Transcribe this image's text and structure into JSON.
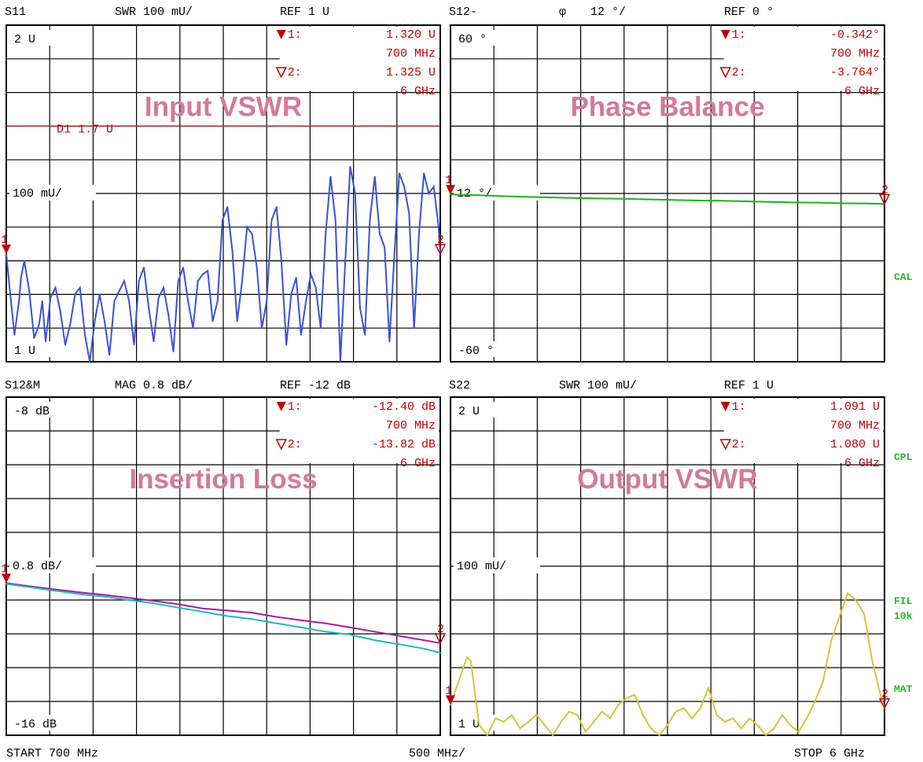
{
  "instrument": {
    "start_label": "START  700 MHz",
    "div_label": "500 MHz/",
    "stop_label": "STOP 6 GHz",
    "side_labels": [
      "CAL",
      "CPL",
      "FIL",
      "10k",
      "MAT"
    ],
    "colors": {
      "grid": "#000000",
      "marker": "#c00000",
      "title": "#d37a95",
      "side": "#22bb22"
    }
  },
  "chart_data": [
    {
      "type": "line",
      "channel": "S11",
      "header": {
        "param": "S11",
        "scale": "SWR 100 mU/",
        "ref": "REF 1 U"
      },
      "title": "Input VSWR",
      "ref_label": "100 mU/",
      "top_label": "2 U",
      "bottom_label": "1 U",
      "ylim": [
        1.0,
        2.0
      ],
      "ref_value": 1.5,
      "xlim": [
        0.7,
        6.0
      ],
      "markers": [
        {
          "num": "1:",
          "value": "1.320  U",
          "freq": "700 MHz"
        },
        {
          "num": "2:",
          "value": "1.325  U",
          "freq": "6 GHz"
        }
      ],
      "extra_labels": [
        {
          "text": "D1 1.7 U",
          "y": 1.7
        }
      ],
      "hline": 1.7,
      "hline_color": "#a52a2a",
      "series": [
        {
          "color": "#3a50d8",
          "x": [
            0.7,
            0.74,
            0.8,
            0.86,
            0.88,
            0.92,
            0.98,
            1.04,
            1.1,
            1.14,
            1.18,
            1.24,
            1.3,
            1.36,
            1.42,
            1.48,
            1.54,
            1.6,
            1.66,
            1.72,
            1.78,
            1.84,
            1.9,
            1.96,
            2.02,
            2.08,
            2.14,
            2.2,
            2.26,
            2.32,
            2.38,
            2.44,
            2.5,
            2.56,
            2.62,
            2.68,
            2.74,
            2.8,
            2.86,
            2.92,
            2.98,
            3.04,
            3.1,
            3.16,
            3.22,
            3.28,
            3.34,
            3.4,
            3.46,
            3.52,
            3.58,
            3.64,
            3.7,
            3.76,
            3.82,
            3.88,
            3.94,
            4.0,
            4.06,
            4.12,
            4.18,
            4.24,
            4.3,
            4.36,
            4.42,
            4.48,
            4.54,
            4.6,
            4.66,
            4.72,
            4.78,
            4.84,
            4.9,
            4.96,
            5.02,
            5.08,
            5.14,
            5.2,
            5.26,
            5.32,
            5.38,
            5.44,
            5.5,
            5.56,
            5.62,
            5.68,
            5.74,
            5.8,
            5.86,
            5.92,
            5.98,
            6.0
          ],
          "values": [
            1.32,
            1.22,
            1.08,
            1.19,
            1.25,
            1.3,
            1.21,
            1.07,
            1.11,
            1.18,
            1.06,
            1.19,
            1.22,
            1.15,
            1.05,
            1.11,
            1.2,
            1.22,
            1.08,
            1.0,
            1.12,
            1.2,
            1.12,
            1.02,
            1.18,
            1.21,
            1.24,
            1.18,
            1.05,
            1.24,
            1.28,
            1.16,
            1.06,
            1.19,
            1.22,
            1.14,
            1.03,
            1.24,
            1.28,
            1.18,
            1.1,
            1.24,
            1.26,
            1.27,
            1.12,
            1.18,
            1.42,
            1.46,
            1.33,
            1.12,
            1.24,
            1.4,
            1.38,
            1.28,
            1.1,
            1.18,
            1.42,
            1.46,
            1.3,
            1.05,
            1.2,
            1.25,
            1.08,
            1.18,
            1.26,
            1.22,
            1.1,
            1.38,
            1.55,
            1.42,
            1.0,
            1.3,
            1.58,
            1.5,
            1.16,
            1.08,
            1.42,
            1.55,
            1.38,
            1.34,
            1.06,
            1.32,
            1.56,
            1.52,
            1.44,
            1.1,
            1.38,
            1.56,
            1.5,
            1.52,
            1.4,
            1.32
          ]
        }
      ]
    },
    {
      "type": "line",
      "channel": "S12-",
      "header": {
        "param": "S12-",
        "phi": "φ",
        "scale": "12 °/",
        "ref": "REF 0 °"
      },
      "title": "Phase Balance",
      "ref_label": "12 °/",
      "top_label": "60 °",
      "bottom_label": "-60 °",
      "ylim": [
        -60,
        60
      ],
      "ref_value": 0,
      "xlim": [
        0.7,
        6.0
      ],
      "markers": [
        {
          "num": "1:",
          "value": "-0.342°",
          "freq": "700 MHz"
        },
        {
          "num": "2:",
          "value": "-3.764°",
          "freq": "6 GHz"
        }
      ],
      "series": [
        {
          "color": "#20b020",
          "x": [
            0.7,
            1.0,
            1.3,
            1.6,
            1.9,
            2.2,
            2.5,
            2.8,
            3.1,
            3.4,
            3.7,
            4.0,
            4.3,
            4.6,
            4.9,
            5.2,
            5.5,
            5.8,
            6.0
          ],
          "values": [
            -0.34,
            -0.6,
            -0.9,
            -1.2,
            -1.4,
            -1.6,
            -1.8,
            -1.9,
            -2.1,
            -2.3,
            -2.5,
            -2.6,
            -2.8,
            -3.0,
            -3.2,
            -3.3,
            -3.5,
            -3.6,
            -3.76
          ]
        }
      ]
    },
    {
      "type": "line",
      "channel": "S12&M",
      "header": {
        "param": "S12&M",
        "scale": "MAG 0.8 dB/",
        "ref": "REF -12 dB"
      },
      "title": "Insertion Loss",
      "ref_label": "0.8 dB/",
      "top_label": "-8 dB",
      "bottom_label": "-16 dB",
      "ylim": [
        -16,
        -8
      ],
      "ref_value": -12,
      "xlim": [
        0.7,
        6.0
      ],
      "markers": [
        {
          "num": "1:",
          "value": "-12.40 dB",
          "freq": "700 MHz"
        },
        {
          "num": "2:",
          "value": "-13.82 dB",
          "freq": "6 GHz"
        }
      ],
      "series": [
        {
          "color": "#a020a0",
          "x": [
            0.7,
            1.0,
            1.3,
            1.6,
            1.9,
            2.2,
            2.5,
            2.8,
            3.1,
            3.4,
            3.7,
            4.0,
            4.3,
            4.6,
            4.9,
            5.2,
            5.5,
            5.8,
            6.0
          ],
          "values": [
            -12.4,
            -12.48,
            -12.55,
            -12.62,
            -12.68,
            -12.75,
            -12.82,
            -12.9,
            -13.0,
            -13.05,
            -13.1,
            -13.2,
            -13.28,
            -13.35,
            -13.45,
            -13.55,
            -13.65,
            -13.75,
            -13.82
          ]
        },
        {
          "color": "#20b8b8",
          "x": [
            0.7,
            1.0,
            1.3,
            1.6,
            1.9,
            2.2,
            2.5,
            2.8,
            3.1,
            3.4,
            3.7,
            4.0,
            4.3,
            4.6,
            4.9,
            5.2,
            5.5,
            5.8,
            6.0
          ],
          "values": [
            -12.42,
            -12.5,
            -12.58,
            -12.66,
            -12.72,
            -12.8,
            -12.88,
            -12.98,
            -13.08,
            -13.18,
            -13.25,
            -13.35,
            -13.45,
            -13.55,
            -13.62,
            -13.75,
            -13.85,
            -13.95,
            -14.05
          ]
        }
      ]
    },
    {
      "type": "line",
      "channel": "S22",
      "header": {
        "param": "S22",
        "scale": "SWR 100 mU/",
        "ref": "REF 1 U"
      },
      "title": "Output VSWR",
      "ref_label": "100 mU/",
      "top_label": "2 U",
      "bottom_label": "1 U",
      "ylim": [
        1.0,
        2.0
      ],
      "ref_value": 1.5,
      "xlim": [
        0.7,
        6.0
      ],
      "markers": [
        {
          "num": "1:",
          "value": "1.091  U",
          "freq": "700 MHz"
        },
        {
          "num": "2:",
          "value": "1.080  U",
          "freq": "6 GHz"
        }
      ],
      "series": [
        {
          "color": "#d6c43a",
          "x": [
            0.7,
            0.8,
            0.9,
            0.95,
            1.0,
            1.05,
            1.15,
            1.25,
            1.35,
            1.45,
            1.55,
            1.65,
            1.75,
            1.85,
            1.95,
            2.05,
            2.15,
            2.25,
            2.35,
            2.45,
            2.55,
            2.65,
            2.75,
            2.85,
            2.95,
            3.05,
            3.15,
            3.25,
            3.35,
            3.45,
            3.55,
            3.65,
            3.75,
            3.85,
            3.95,
            4.05,
            4.15,
            4.25,
            4.35,
            4.45,
            4.55,
            4.65,
            4.75,
            4.85,
            4.95,
            5.05,
            5.15,
            5.25,
            5.35,
            5.45,
            5.55,
            5.65,
            5.75,
            5.85,
            5.95,
            6.0
          ],
          "values": [
            1.09,
            1.16,
            1.23,
            1.22,
            1.12,
            1.03,
            1.0,
            1.05,
            1.04,
            1.06,
            1.02,
            1.04,
            1.06,
            1.03,
            1.0,
            1.04,
            1.07,
            1.06,
            1.01,
            1.04,
            1.07,
            1.05,
            1.09,
            1.11,
            1.12,
            1.06,
            1.02,
            1.0,
            1.03,
            1.07,
            1.08,
            1.05,
            1.08,
            1.14,
            1.06,
            1.04,
            1.05,
            1.02,
            1.05,
            1.03,
            1.0,
            1.02,
            1.06,
            1.03,
            1.01,
            1.05,
            1.1,
            1.16,
            1.28,
            1.35,
            1.42,
            1.4,
            1.36,
            1.22,
            1.12,
            1.08
          ]
        }
      ]
    }
  ]
}
